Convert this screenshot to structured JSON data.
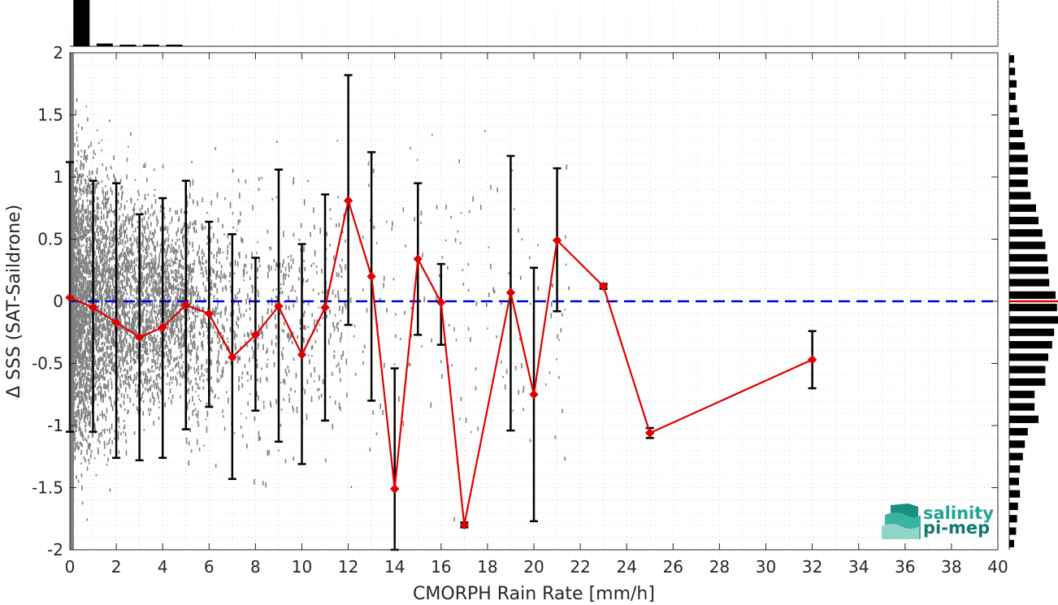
{
  "chart_data": {
    "type": "scatter",
    "xlabel": "CMORPH Rain Rate [mm/h]",
    "ylabel": "Δ SSS (SAT-Saildrone)",
    "xlim": [
      0,
      40
    ],
    "ylim": [
      -2,
      2
    ],
    "x_ticks": [
      0,
      2,
      4,
      6,
      8,
      10,
      12,
      14,
      16,
      18,
      20,
      22,
      24,
      26,
      28,
      30,
      32,
      34,
      36,
      38,
      40
    ],
    "y_ticks": [
      -2,
      -1.5,
      -1,
      -0.5,
      0,
      0.5,
      1,
      1.5,
      2
    ],
    "y_tick_labels": [
      "-2",
      "-1.5",
      "-1",
      "-0.5",
      "0",
      "0.5",
      "1",
      "1.5",
      "2"
    ],
    "grid": true,
    "colors": {
      "scatter": "#808080",
      "mean_line": "#e00000",
      "zero_line": "#0000e0",
      "error_bars": "#000000",
      "histograms": "#000000"
    },
    "zero_line": 0,
    "binned_mean": {
      "x": [
        0,
        1,
        2,
        3,
        4,
        5,
        6,
        7,
        8,
        9,
        10,
        11,
        12,
        13,
        14,
        15,
        16,
        17,
        19,
        20,
        21,
        23,
        25,
        32
      ],
      "y": [
        0.03,
        -0.05,
        -0.17,
        -0.29,
        -0.21,
        -0.03,
        -0.1,
        -0.45,
        -0.27,
        -0.04,
        -0.43,
        -0.05,
        0.81,
        0.2,
        -1.51,
        0.34,
        -0.01,
        -1.8,
        0.07,
        -0.75,
        0.49,
        0.12,
        -1.06,
        -0.47
      ],
      "err_low": [
        -1.05,
        -1.05,
        -1.26,
        -1.28,
        -1.26,
        -1.03,
        -0.85,
        -1.43,
        -0.88,
        -1.13,
        -1.31,
        -0.96,
        -0.19,
        -0.8,
        -2.0,
        -0.27,
        -0.35,
        -1.82,
        -1.04,
        -1.77,
        -0.08,
        0.1,
        -1.1,
        -0.7
      ],
      "err_high": [
        1.12,
        0.97,
        0.95,
        0.7,
        0.83,
        0.97,
        0.64,
        0.54,
        0.35,
        1.06,
        0.46,
        0.86,
        1.82,
        1.2,
        -0.54,
        0.95,
        0.3,
        -1.78,
        1.17,
        0.27,
        1.07,
        0.14,
        -1.02,
        -0.24
      ]
    },
    "x_histogram": {
      "bins": [
        0.5,
        1.5,
        2.5,
        3.5,
        4.5
      ],
      "counts": [
        1.0,
        0.06,
        0.02,
        0.015,
        0.01
      ]
    },
    "y_histogram": {
      "bins": [
        1.95,
        1.85,
        1.75,
        1.65,
        1.55,
        1.45,
        1.35,
        1.25,
        1.15,
        1.05,
        0.95,
        0.85,
        0.75,
        0.65,
        0.55,
        0.45,
        0.35,
        0.25,
        0.15,
        0.05,
        -0.05,
        -0.15,
        -0.25,
        -0.35,
        -0.45,
        -0.55,
        -0.65,
        -0.75,
        -0.85,
        -0.95,
        -1.05,
        -1.15,
        -1.25,
        -1.35,
        -1.45,
        -1.55,
        -1.65,
        -1.75,
        -1.85,
        -1.95
      ],
      "counts": [
        0.1,
        0.12,
        0.15,
        0.13,
        0.16,
        0.2,
        0.28,
        0.32,
        0.38,
        0.38,
        0.38,
        0.44,
        0.55,
        0.6,
        0.68,
        0.74,
        0.78,
        0.8,
        0.82,
        0.95,
        0.98,
        1.0,
        0.92,
        0.88,
        0.8,
        0.74,
        0.74,
        0.52,
        0.52,
        0.6,
        0.38,
        0.32,
        0.28,
        0.22,
        0.2,
        0.22,
        0.18,
        0.16,
        0.14,
        0.1
      ]
    }
  },
  "logo": {
    "line1": "salinity",
    "line2": "pi-mep"
  }
}
